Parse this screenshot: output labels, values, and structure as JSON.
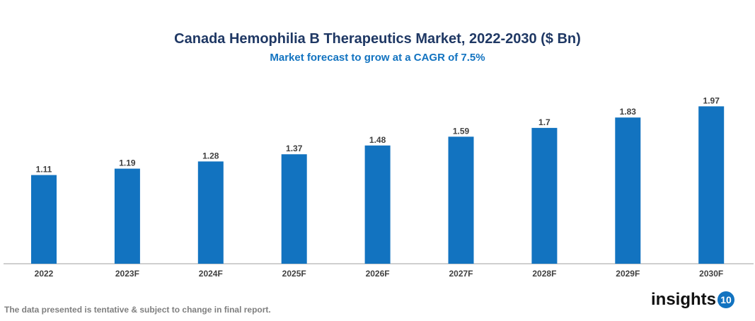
{
  "chart_data": {
    "type": "bar",
    "title": "Canada Hemophilia B Therapeutics Market, 2022-2030 ($ Bn)",
    "subtitle": "Market forecast to grow at a CAGR of 7.5%",
    "categories": [
      "2022",
      "2023F",
      "2024F",
      "2025F",
      "2026F",
      "2027F",
      "2028F",
      "2029F",
      "2030F"
    ],
    "values": [
      1.11,
      1.19,
      1.28,
      1.37,
      1.48,
      1.59,
      1.7,
      1.83,
      1.97
    ],
    "labels": [
      "1.11",
      "1.19",
      "1.28",
      "1.37",
      "1.48",
      "1.59",
      "1.7",
      "1.83",
      "1.97"
    ],
    "xlabel": "",
    "ylabel": "",
    "ylim": [
      0,
      2.0
    ],
    "grid": false,
    "bar_color": "#1273c0"
  },
  "footer": {
    "note": "The data presented is tentative & subject to change in final report.",
    "logo_text": "insights",
    "logo_number": "10"
  }
}
